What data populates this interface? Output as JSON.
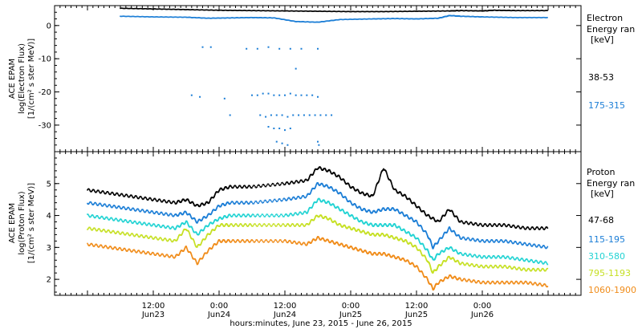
{
  "chart_data": [
    {
      "type": "scatter",
      "panel": "electron",
      "ylabel": [
        "ACE EPAM",
        "log(Electron Flux)",
        "[1/(cm² s ster MeV)]"
      ],
      "ylim": [
        -38,
        6
      ],
      "yticks": [
        0,
        -10,
        -20,
        -30
      ],
      "legend_title": [
        "Electron",
        "Energy ran",
        "[keV]"
      ],
      "series": [
        {
          "name": "38-53",
          "color": "#000000",
          "points": [
            [
              6,
              5.2
            ],
            [
              12,
              5
            ],
            [
              18,
              4.8
            ],
            [
              24,
              4.6
            ],
            [
              30,
              4.5
            ],
            [
              36,
              4.4
            ],
            [
              42,
              4.3
            ],
            [
              48,
              4.2
            ],
            [
              54,
              4.2
            ],
            [
              60,
              4.3
            ],
            [
              66,
              4.4
            ],
            [
              68,
              4.5
            ],
            [
              72,
              4.4
            ],
            [
              74,
              4.6
            ],
            [
              78,
              4.5
            ],
            [
              84,
              4.5
            ]
          ]
        },
        {
          "name": "175-315",
          "color": "#1c7ed6",
          "points": [
            [
              6,
              2.8
            ],
            [
              12,
              2.6
            ],
            [
              18,
              2.5
            ],
            [
              22,
              2.2
            ],
            [
              26,
              2.3
            ],
            [
              30,
              2.4
            ],
            [
              34,
              2.3
            ],
            [
              38,
              1.2
            ],
            [
              42,
              1.0
            ],
            [
              46,
              1.8
            ],
            [
              52,
              2.0
            ],
            [
              56,
              2.1
            ],
            [
              60,
              2.0
            ],
            [
              64,
              2.2
            ],
            [
              66,
              3.0
            ],
            [
              68,
              2.8
            ],
            [
              72,
              2.6
            ],
            [
              78,
              2.4
            ],
            [
              84,
              2.4
            ]
          ],
          "scatter_points": [
            [
              21,
              -6.5
            ],
            [
              22.5,
              -6.5
            ],
            [
              19,
              -21
            ],
            [
              20.5,
              -21.5
            ],
            [
              25,
              -22
            ],
            [
              26,
              -27
            ],
            [
              29,
              -7
            ],
            [
              30,
              -21
            ],
            [
              31,
              -21
            ],
            [
              32,
              -20.5
            ],
            [
              33,
              -20.5
            ],
            [
              34,
              -21
            ],
            [
              35,
              -21
            ],
            [
              36,
              -21
            ],
            [
              37,
              -20.5
            ],
            [
              38,
              -21
            ],
            [
              39,
              -21
            ],
            [
              40,
              -21
            ],
            [
              41,
              -21
            ],
            [
              42,
              -21.5
            ],
            [
              31.5,
              -27
            ],
            [
              32.5,
              -27.5
            ],
            [
              33.5,
              -27
            ],
            [
              34.5,
              -27
            ],
            [
              35.5,
              -27
            ],
            [
              36.5,
              -27.5
            ],
            [
              37.5,
              -27
            ],
            [
              38.5,
              -27
            ],
            [
              39.5,
              -27
            ],
            [
              40.5,
              -27
            ],
            [
              41.5,
              -27
            ],
            [
              42.5,
              -27
            ],
            [
              43.5,
              -27
            ],
            [
              44.5,
              -27
            ],
            [
              33,
              -30.5
            ],
            [
              34,
              -31
            ],
            [
              35,
              -31
            ],
            [
              36,
              -31.5
            ],
            [
              37,
              -31
            ],
            [
              34.5,
              -35
            ],
            [
              35.5,
              -35.5
            ],
            [
              36.5,
              -36
            ],
            [
              42,
              -35
            ],
            [
              42.2,
              -36
            ],
            [
              31,
              -7
            ],
            [
              33,
              -6.5
            ],
            [
              35,
              -7
            ],
            [
              37,
              -7
            ],
            [
              39,
              -7
            ],
            [
              42,
              -7
            ],
            [
              38,
              -13
            ]
          ]
        }
      ]
    },
    {
      "type": "line",
      "panel": "proton",
      "ylabel": [
        "ACE EPAM",
        "log(Proton Flux)",
        "[1/(cm² s ster MeV)]"
      ],
      "ylim": [
        1.5,
        6
      ],
      "yticks": [
        2,
        3,
        4,
        5
      ],
      "legend_title": [
        "Proton",
        "Energy ran",
        "[keV]"
      ],
      "series": [
        {
          "name": "47-68",
          "color": "#000000",
          "points": [
            [
              0,
              4.8
            ],
            [
              4,
              4.7
            ],
            [
              8,
              4.6
            ],
            [
              12,
              4.5
            ],
            [
              16,
              4.4
            ],
            [
              18,
              4.5
            ],
            [
              20,
              4.3
            ],
            [
              22,
              4.4
            ],
            [
              24,
              4.8
            ],
            [
              26,
              4.9
            ],
            [
              30,
              4.9
            ],
            [
              36,
              5.0
            ],
            [
              40,
              5.1
            ],
            [
              42,
              5.5
            ],
            [
              44,
              5.4
            ],
            [
              46,
              5.2
            ],
            [
              48,
              4.9
            ],
            [
              50,
              4.7
            ],
            [
              52,
              4.6
            ],
            [
              54,
              5.5
            ],
            [
              56,
              4.8
            ],
            [
              58,
              4.6
            ],
            [
              60,
              4.3
            ],
            [
              62,
              4.0
            ],
            [
              64,
              3.8
            ],
            [
              66,
              4.2
            ],
            [
              68,
              3.8
            ],
            [
              72,
              3.7
            ],
            [
              76,
              3.7
            ],
            [
              80,
              3.6
            ],
            [
              84,
              3.6
            ]
          ]
        },
        {
          "name": "115-195",
          "color": "#1c7ed6",
          "points": [
            [
              0,
              4.4
            ],
            [
              4,
              4.3
            ],
            [
              8,
              4.2
            ],
            [
              12,
              4.1
            ],
            [
              16,
              4.0
            ],
            [
              18,
              4.1
            ],
            [
              20,
              3.8
            ],
            [
              22,
              4.0
            ],
            [
              24,
              4.3
            ],
            [
              26,
              4.4
            ],
            [
              30,
              4.4
            ],
            [
              36,
              4.5
            ],
            [
              40,
              4.6
            ],
            [
              42,
              5.0
            ],
            [
              44,
              4.9
            ],
            [
              46,
              4.7
            ],
            [
              48,
              4.4
            ],
            [
              50,
              4.2
            ],
            [
              52,
              4.1
            ],
            [
              54,
              4.2
            ],
            [
              56,
              4.2
            ],
            [
              58,
              4.0
            ],
            [
              60,
              3.8
            ],
            [
              62,
              3.4
            ],
            [
              63,
              3.0
            ],
            [
              64,
              3.2
            ],
            [
              66,
              3.6
            ],
            [
              68,
              3.3
            ],
            [
              72,
              3.2
            ],
            [
              76,
              3.2
            ],
            [
              80,
              3.1
            ],
            [
              84,
              3.0
            ]
          ]
        },
        {
          "name": "310-580",
          "color": "#22d3d3",
          "points": [
            [
              0,
              4.0
            ],
            [
              4,
              3.9
            ],
            [
              8,
              3.8
            ],
            [
              12,
              3.7
            ],
            [
              16,
              3.6
            ],
            [
              18,
              3.8
            ],
            [
              20,
              3.4
            ],
            [
              22,
              3.7
            ],
            [
              24,
              3.9
            ],
            [
              26,
              4.0
            ],
            [
              30,
              4.0
            ],
            [
              36,
              4.0
            ],
            [
              40,
              4.1
            ],
            [
              42,
              4.5
            ],
            [
              44,
              4.4
            ],
            [
              46,
              4.2
            ],
            [
              48,
              4.0
            ],
            [
              50,
              3.8
            ],
            [
              52,
              3.7
            ],
            [
              54,
              3.7
            ],
            [
              56,
              3.7
            ],
            [
              58,
              3.5
            ],
            [
              60,
              3.3
            ],
            [
              62,
              2.9
            ],
            [
              63,
              2.6
            ],
            [
              64,
              2.8
            ],
            [
              66,
              3.0
            ],
            [
              68,
              2.8
            ],
            [
              72,
              2.7
            ],
            [
              76,
              2.7
            ],
            [
              80,
              2.6
            ],
            [
              84,
              2.5
            ]
          ]
        },
        {
          "name": "795-1193",
          "color": "#c6e024",
          "points": [
            [
              0,
              3.6
            ],
            [
              4,
              3.5
            ],
            [
              8,
              3.4
            ],
            [
              12,
              3.3
            ],
            [
              16,
              3.2
            ],
            [
              18,
              3.6
            ],
            [
              20,
              3.0
            ],
            [
              22,
              3.4
            ],
            [
              24,
              3.7
            ],
            [
              26,
              3.7
            ],
            [
              30,
              3.7
            ],
            [
              36,
              3.7
            ],
            [
              40,
              3.7
            ],
            [
              42,
              4.0
            ],
            [
              44,
              3.9
            ],
            [
              46,
              3.7
            ],
            [
              48,
              3.6
            ],
            [
              50,
              3.5
            ],
            [
              52,
              3.4
            ],
            [
              54,
              3.4
            ],
            [
              56,
              3.3
            ],
            [
              58,
              3.2
            ],
            [
              60,
              3.0
            ],
            [
              62,
              2.6
            ],
            [
              63,
              2.2
            ],
            [
              64,
              2.4
            ],
            [
              66,
              2.7
            ],
            [
              68,
              2.5
            ],
            [
              72,
              2.4
            ],
            [
              76,
              2.4
            ],
            [
              80,
              2.3
            ],
            [
              84,
              2.3
            ]
          ]
        },
        {
          "name": "1060-1900",
          "color": "#f08c1a",
          "points": [
            [
              0,
              3.1
            ],
            [
              4,
              3.0
            ],
            [
              8,
              2.9
            ],
            [
              12,
              2.8
            ],
            [
              16,
              2.7
            ],
            [
              18,
              3.0
            ],
            [
              20,
              2.5
            ],
            [
              22,
              2.9
            ],
            [
              24,
              3.2
            ],
            [
              26,
              3.2
            ],
            [
              30,
              3.2
            ],
            [
              36,
              3.2
            ],
            [
              40,
              3.1
            ],
            [
              42,
              3.3
            ],
            [
              44,
              3.2
            ],
            [
              46,
              3.1
            ],
            [
              48,
              3.0
            ],
            [
              50,
              2.9
            ],
            [
              52,
              2.8
            ],
            [
              54,
              2.8
            ],
            [
              56,
              2.7
            ],
            [
              58,
              2.6
            ],
            [
              60,
              2.4
            ],
            [
              62,
              2.0
            ],
            [
              63,
              1.7
            ],
            [
              64,
              1.9
            ],
            [
              66,
              2.1
            ],
            [
              68,
              2.0
            ],
            [
              72,
              1.9
            ],
            [
              76,
              1.9
            ],
            [
              80,
              1.9
            ],
            [
              84,
              1.8
            ]
          ]
        }
      ]
    }
  ],
  "x_axis": {
    "xlim": [
      -6,
      90
    ],
    "tick_values": [
      6,
      18,
      30,
      42,
      54,
      66,
      78
    ],
    "tick_labels": [
      [
        "12:00",
        "Jun23"
      ],
      [
        "0:00",
        "Jun24"
      ],
      [
        "12:00",
        "Jun24"
      ],
      [
        "0:00",
        "Jun25"
      ],
      [
        "12:00",
        "Jun25"
      ],
      [
        "0:00",
        "Jun26"
      ]
    ],
    "tick_label_values": [
      12,
      24,
      36,
      48,
      60,
      72
    ],
    "minor_step": 1,
    "xlabel": "hours:minutes, June 23, 2015 - June 26, 2015"
  }
}
